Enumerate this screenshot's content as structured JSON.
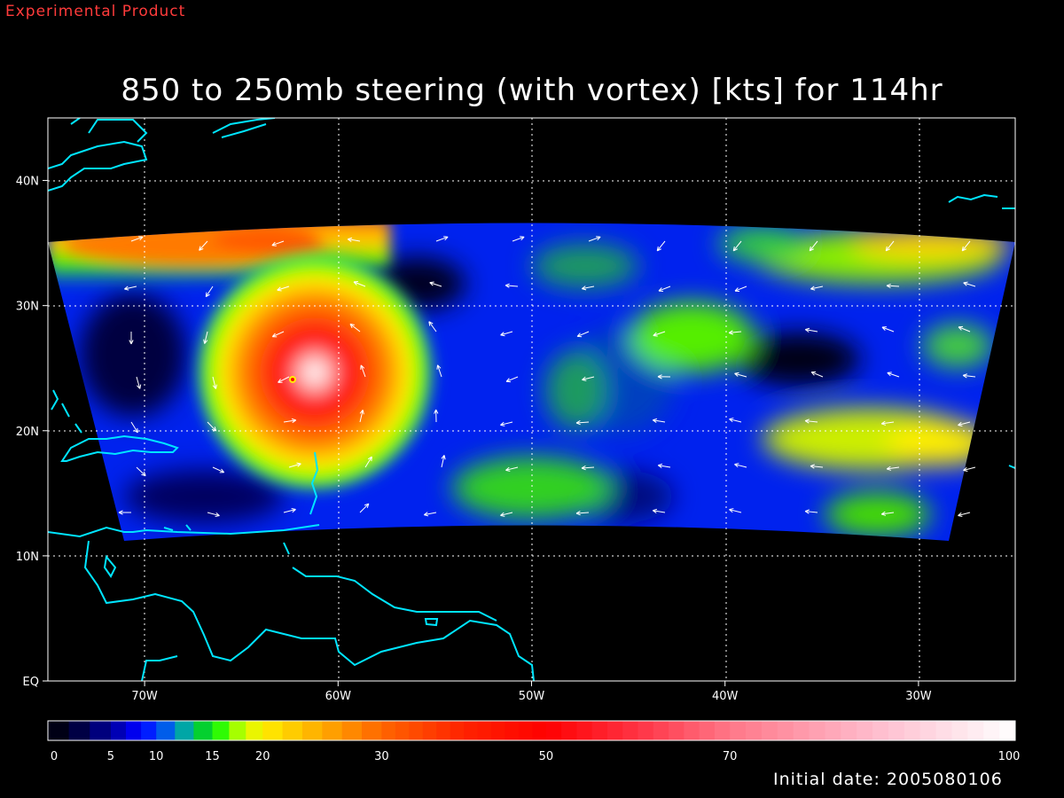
{
  "header": {
    "product_label": "Experimental Product",
    "title": "850 to 250mb steering (with vortex) [kts] for 114hr"
  },
  "map": {
    "lon_range": [
      -75,
      -25
    ],
    "lat_range": [
      0,
      45
    ],
    "lon_ticks": [
      {
        "value": -70,
        "label": "70W"
      },
      {
        "value": -60,
        "label": "60W"
      },
      {
        "value": -50,
        "label": "50W"
      },
      {
        "value": -40,
        "label": "40W"
      },
      {
        "value": -30,
        "label": "30W"
      }
    ],
    "lat_ticks": [
      {
        "value": 0,
        "label": "EQ"
      },
      {
        "value": 10,
        "label": "10N"
      },
      {
        "value": 20,
        "label": "20N"
      },
      {
        "value": 30,
        "label": "30N"
      },
      {
        "value": 40,
        "label": "40N"
      }
    ],
    "vortex_center": {
      "lon": -62.5,
      "lat": 24
    }
  },
  "colorbar": {
    "labels": [
      "0",
      "5",
      "10",
      "15",
      "20",
      "30",
      "50",
      "70",
      "100"
    ],
    "unit": "kts"
  },
  "footer": {
    "initial_date": "Initial date: 2005080106"
  },
  "colors": {
    "coastline": "#00e5ff",
    "product_label": "#ff3b3b",
    "background": "#000000"
  }
}
